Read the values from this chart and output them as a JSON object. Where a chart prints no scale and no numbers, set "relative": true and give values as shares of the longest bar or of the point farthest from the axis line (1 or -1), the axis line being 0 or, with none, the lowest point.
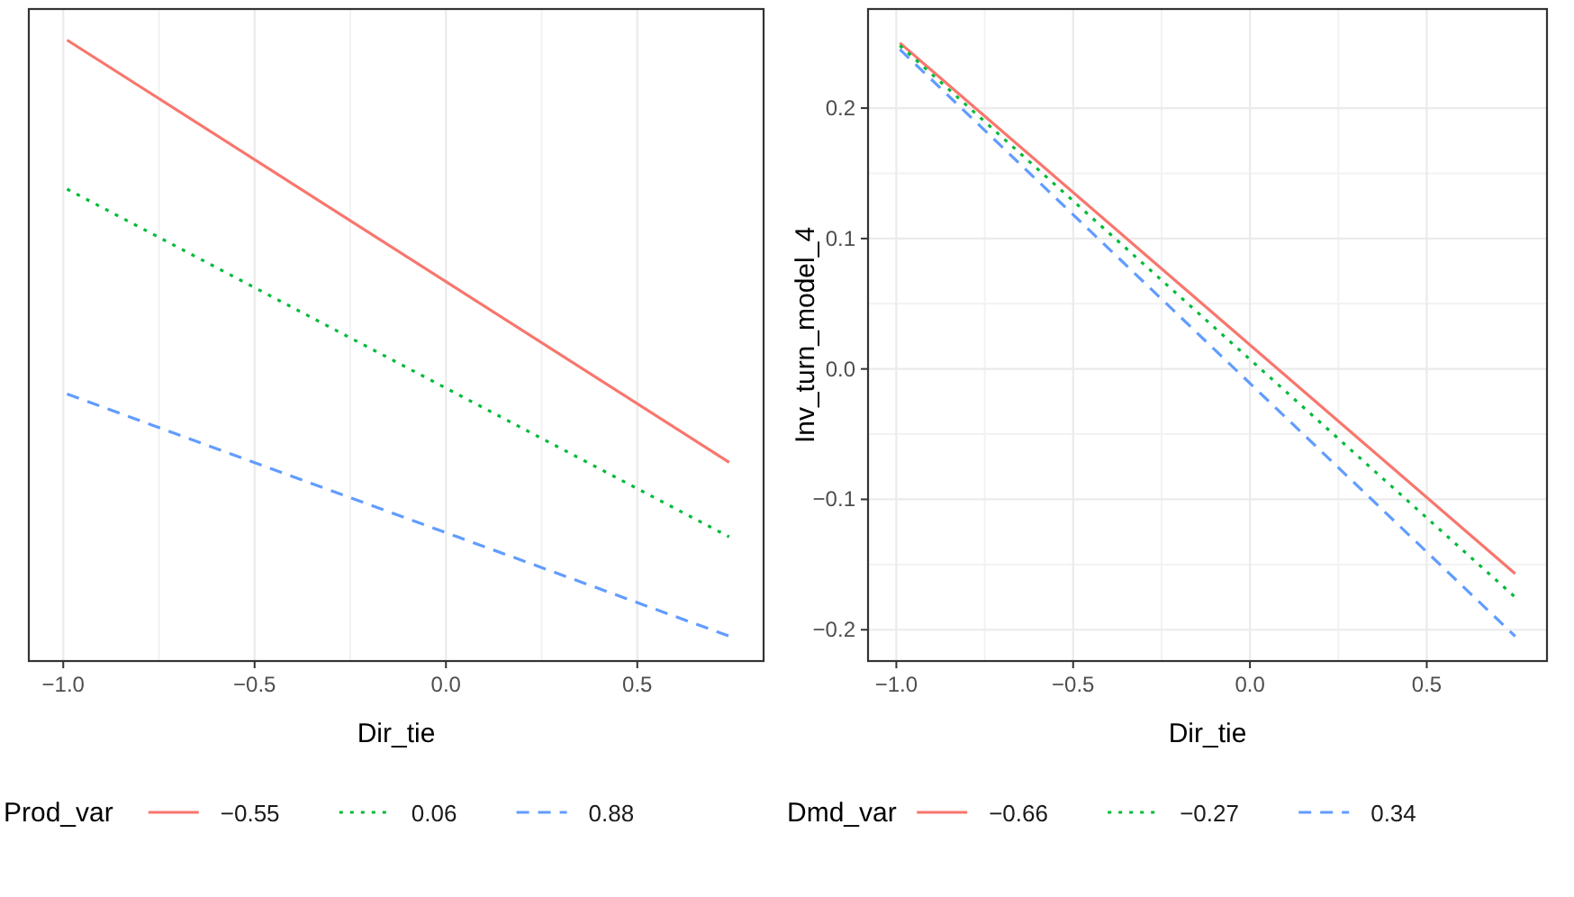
{
  "chart_data": [
    {
      "type": "line",
      "xlabel": "Dir_tie",
      "legend_title": "Prod_var",
      "relative": true,
      "x": [
        -0.99,
        0.74
      ],
      "xlim": [
        -1.09,
        0.83
      ],
      "xticks": [
        {
          "value": -1,
          "label": "−1.0"
        },
        {
          "value": -0.5,
          "label": "−0.5"
        },
        {
          "value": 0,
          "label": "0.0"
        },
        {
          "value": 0.5,
          "label": "0.5"
        }
      ],
      "grid": true,
      "legend": "bottom",
      "series": [
        {
          "name": "−0.55",
          "color": "#f8766d",
          "line_style": "solid",
          "values": [
            1,
            0.32
          ]
        },
        {
          "name": "0.06",
          "color": "#00ba38",
          "line_style": "dotted",
          "values": [
            0.76,
            0.2
          ]
        },
        {
          "name": "0.88",
          "color": "#619cff",
          "line_style": "dashed",
          "values": [
            0.43,
            0.04
          ]
        }
      ]
    },
    {
      "type": "line",
      "xlabel": "Dir_tie",
      "ylabel": "Inv_turn_model_4",
      "legend_title": "Dmd_var",
      "x": [
        -0.99,
        0.75
      ],
      "xlim": [
        -1.08,
        0.84
      ],
      "xticks": [
        {
          "value": -1,
          "label": "−1.0"
        },
        {
          "value": -0.5,
          "label": "−0.5"
        },
        {
          "value": 0,
          "label": "0.0"
        },
        {
          "value": 0.5,
          "label": "0.5"
        }
      ],
      "ylim": [
        -0.224,
        0.276
      ],
      "yticks": [
        {
          "value": -0.2,
          "label": "−0.2"
        },
        {
          "value": -0.1,
          "label": "−0.1"
        },
        {
          "value": 0,
          "label": "0.0"
        },
        {
          "value": 0.1,
          "label": "0.1"
        },
        {
          "value": 0.2,
          "label": "0.2"
        }
      ],
      "grid": true,
      "legend": "bottom",
      "series": [
        {
          "name": "−0.66",
          "color": "#f8766d",
          "line_style": "solid",
          "values": [
            0.25,
            -0.157
          ]
        },
        {
          "name": "−0.27",
          "color": "#00ba38",
          "line_style": "dotted",
          "values": [
            0.248,
            -0.175
          ]
        },
        {
          "name": "0.34",
          "color": "#619cff",
          "line_style": "dashed",
          "values": [
            0.245,
            -0.205
          ]
        }
      ]
    }
  ]
}
